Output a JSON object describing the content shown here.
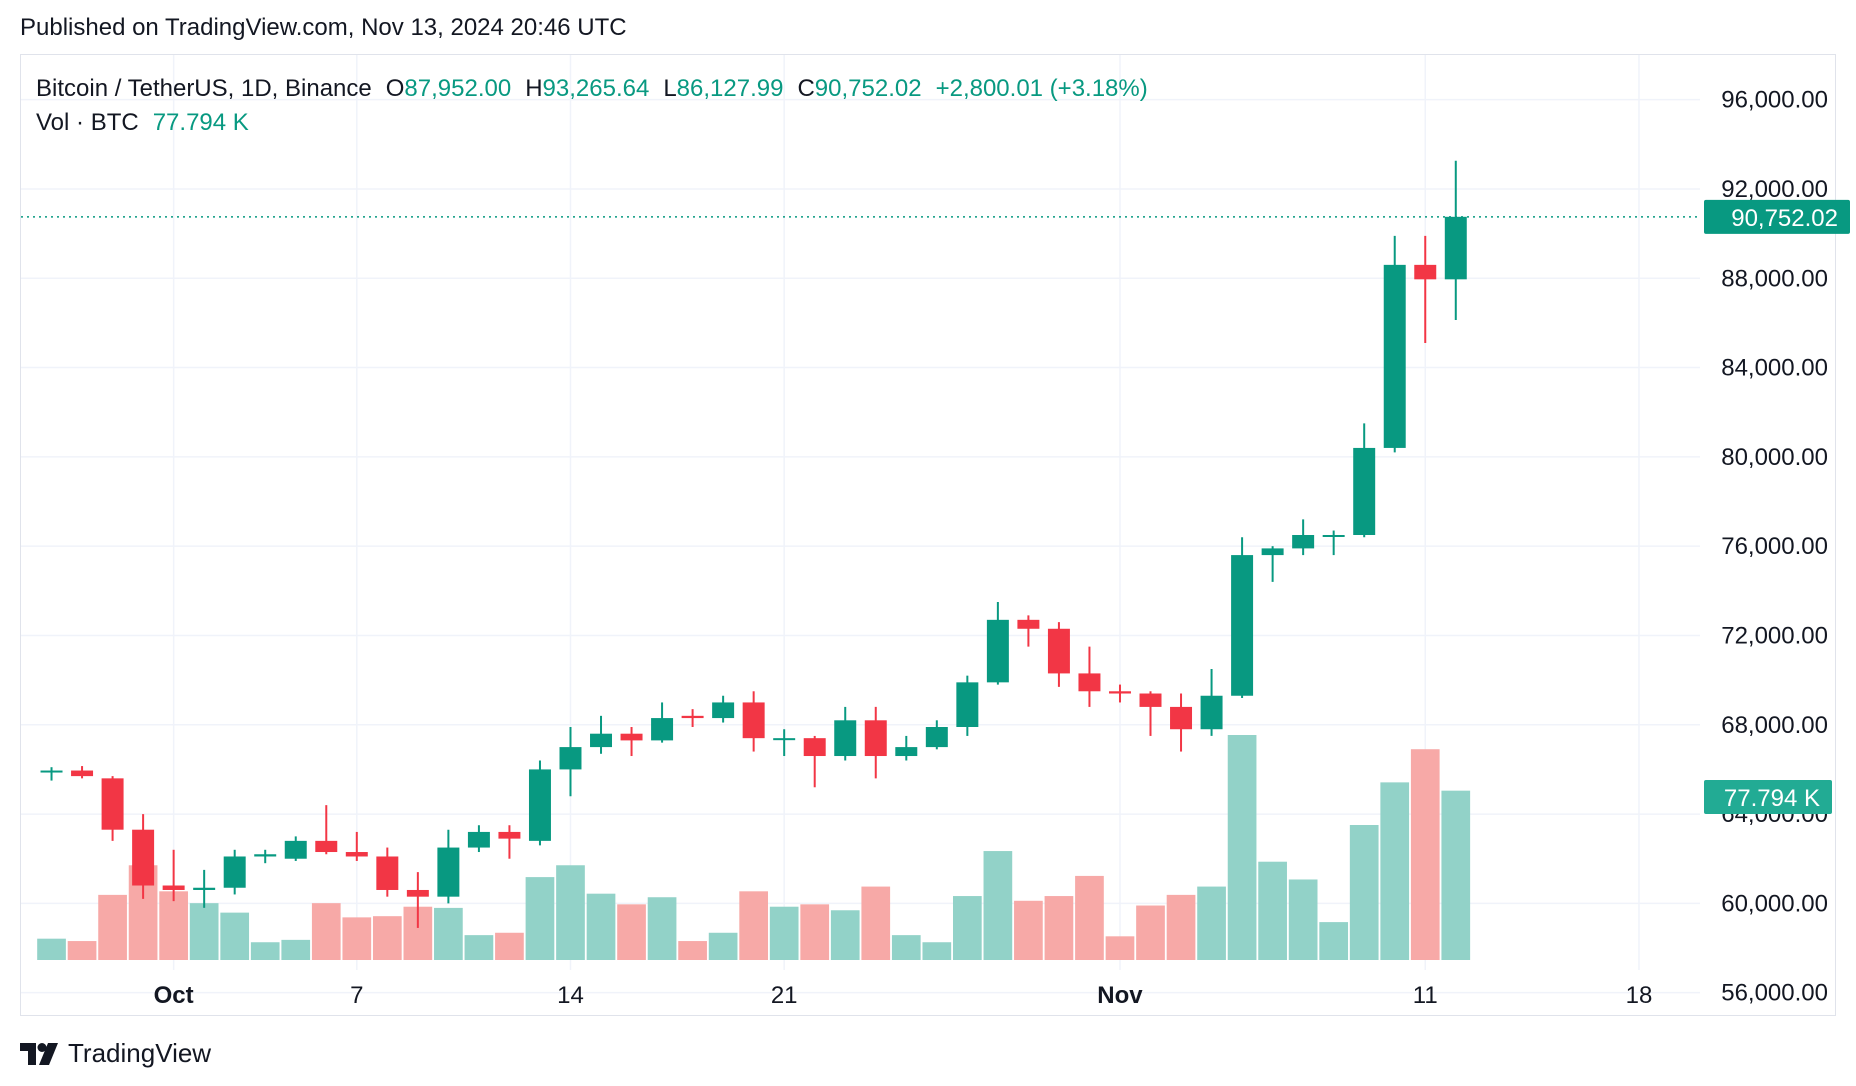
{
  "header": {
    "published": "Published on TradingView.com, Nov 13, 2024 20:46 UTC"
  },
  "legend": {
    "symbol": "Bitcoin / TetherUS, 1D, Binance",
    "o_label": "O",
    "o_value": "87,952.00",
    "h_label": "H",
    "h_value": "93,265.64",
    "l_label": "L",
    "l_value": "86,127.99",
    "c_label": "C",
    "c_value": "90,752.02",
    "change": "+2,800.01 (+3.18%)",
    "vol_label": "Vol · BTC",
    "vol_value": "77.794 K"
  },
  "footer": {
    "brand": "TradingView"
  },
  "colors": {
    "up": "#089981",
    "down": "#f23645",
    "up_volume": "#92d2c8",
    "down_volume": "#f7a9a7",
    "grid": "#f0f3fa",
    "axis_text": "#131722"
  },
  "chart_data": {
    "type": "candlestick",
    "title": "Bitcoin / TetherUS, 1D, Binance",
    "ylim": [
      55000,
      98000
    ],
    "y_ticks": [
      "96,000.00",
      "92,000.00",
      "88,000.00",
      "84,000.00",
      "80,000.00",
      "76,000.00",
      "72,000.00",
      "68,000.00",
      "64,000.00",
      "60,000.00",
      "56,000.00"
    ],
    "y_tick_values": [
      96000,
      92000,
      88000,
      84000,
      80000,
      76000,
      72000,
      68000,
      64000,
      60000,
      56000
    ],
    "x_ticks": [
      {
        "label": "Oct",
        "date": "2024-10-01"
      },
      {
        "label": "7",
        "date": "2024-10-07"
      },
      {
        "label": "14",
        "date": "2024-10-14"
      },
      {
        "label": "21",
        "date": "2024-10-21"
      },
      {
        "label": "Nov",
        "date": "2024-11-01"
      },
      {
        "label": "11",
        "date": "2024-11-11"
      },
      {
        "label": "18",
        "date": "2024-11-18"
      }
    ],
    "x_range": [
      "2024-09-26",
      "2024-11-20"
    ],
    "last_price_label": "90,752.02",
    "last_price": 90752.02,
    "volume_label": "77.794 K",
    "candles": [
      {
        "date": "2024-09-27",
        "open": 65900,
        "high": 66100,
        "low": 65500,
        "close": 65950,
        "volume": 18
      },
      {
        "date": "2024-09-28",
        "open": 65950,
        "high": 66150,
        "low": 65600,
        "close": 65700,
        "volume": 16
      },
      {
        "date": "2024-09-29",
        "open": 65600,
        "high": 65700,
        "low": 62800,
        "close": 63300,
        "volume": 55
      },
      {
        "date": "2024-09-30",
        "open": 63300,
        "high": 64000,
        "low": 60200,
        "close": 60800,
        "volume": 80
      },
      {
        "date": "2024-10-01",
        "open": 60800,
        "high": 62400,
        "low": 60100,
        "close": 60600,
        "volume": 58
      },
      {
        "date": "2024-10-02",
        "open": 60600,
        "high": 61500,
        "low": 59800,
        "close": 60700,
        "volume": 48
      },
      {
        "date": "2024-10-03",
        "open": 60700,
        "high": 62400,
        "low": 60400,
        "close": 62100,
        "volume": 40
      },
      {
        "date": "2024-10-04",
        "open": 62100,
        "high": 62400,
        "low": 61800,
        "close": 62200,
        "volume": 15
      },
      {
        "date": "2024-10-05",
        "open": 62000,
        "high": 63000,
        "low": 61900,
        "close": 62800,
        "volume": 17
      },
      {
        "date": "2024-10-06",
        "open": 62800,
        "high": 64400,
        "low": 62200,
        "close": 62300,
        "volume": 48
      },
      {
        "date": "2024-10-07",
        "open": 62300,
        "high": 63200,
        "low": 61900,
        "close": 62100,
        "volume": 36
      },
      {
        "date": "2024-10-08",
        "open": 62100,
        "high": 62500,
        "low": 60300,
        "close": 60600,
        "volume": 37
      },
      {
        "date": "2024-10-09",
        "open": 60600,
        "high": 61400,
        "low": 58900,
        "close": 60300,
        "volume": 45
      },
      {
        "date": "2024-10-10",
        "open": 60300,
        "high": 63300,
        "low": 60000,
        "close": 62500,
        "volume": 44
      },
      {
        "date": "2024-10-11",
        "open": 62500,
        "high": 63500,
        "low": 62300,
        "close": 63200,
        "volume": 21
      },
      {
        "date": "2024-10-12",
        "open": 63200,
        "high": 63500,
        "low": 62000,
        "close": 62900,
        "volume": 23
      },
      {
        "date": "2024-10-13",
        "open": 62800,
        "high": 66400,
        "low": 62600,
        "close": 66000,
        "volume": 70
      },
      {
        "date": "2024-10-14",
        "open": 66000,
        "high": 67900,
        "low": 64800,
        "close": 67000,
        "volume": 80
      },
      {
        "date": "2024-10-15",
        "open": 67000,
        "high": 68400,
        "low": 66700,
        "close": 67600,
        "volume": 56
      },
      {
        "date": "2024-10-16",
        "open": 67600,
        "high": 67900,
        "low": 66600,
        "close": 67300,
        "volume": 47
      },
      {
        "date": "2024-10-17",
        "open": 67300,
        "high": 69000,
        "low": 67200,
        "close": 68300,
        "volume": 53
      },
      {
        "date": "2024-10-18",
        "open": 68400,
        "high": 68700,
        "low": 67900,
        "close": 68300,
        "volume": 16
      },
      {
        "date": "2024-10-19",
        "open": 68300,
        "high": 69300,
        "low": 68100,
        "close": 69000,
        "volume": 23
      },
      {
        "date": "2024-10-20",
        "open": 69000,
        "high": 69500,
        "low": 66800,
        "close": 67400,
        "volume": 58
      },
      {
        "date": "2024-10-21",
        "open": 67400,
        "high": 67800,
        "low": 66600,
        "close": 67400,
        "volume": 45
      },
      {
        "date": "2024-10-22",
        "open": 67400,
        "high": 67500,
        "low": 65200,
        "close": 66600,
        "volume": 47
      },
      {
        "date": "2024-10-23",
        "open": 66600,
        "high": 68800,
        "low": 66400,
        "close": 68200,
        "volume": 42
      },
      {
        "date": "2024-10-24",
        "open": 68200,
        "high": 68800,
        "low": 65600,
        "close": 66600,
        "volume": 62
      },
      {
        "date": "2024-10-25",
        "open": 66600,
        "high": 67500,
        "low": 66400,
        "close": 67000,
        "volume": 21
      },
      {
        "date": "2024-10-26",
        "open": 67000,
        "high": 68200,
        "low": 66900,
        "close": 67900,
        "volume": 15
      },
      {
        "date": "2024-10-27",
        "open": 67900,
        "high": 70200,
        "low": 67500,
        "close": 69900,
        "volume": 54
      },
      {
        "date": "2024-10-28",
        "open": 69900,
        "high": 73500,
        "low": 69800,
        "close": 72700,
        "volume": 92
      },
      {
        "date": "2024-10-29",
        "open": 72700,
        "high": 72900,
        "low": 71500,
        "close": 72300,
        "volume": 50
      },
      {
        "date": "2024-10-30",
        "open": 72300,
        "high": 72600,
        "low": 69700,
        "close": 70300,
        "volume": 54
      },
      {
        "date": "2024-10-31",
        "open": 70300,
        "high": 71500,
        "low": 68800,
        "close": 69500,
        "volume": 71
      },
      {
        "date": "2024-11-01",
        "open": 69500,
        "high": 69800,
        "low": 69000,
        "close": 69400,
        "volume": 20
      },
      {
        "date": "2024-11-02",
        "open": 69400,
        "high": 69500,
        "low": 67500,
        "close": 68800,
        "volume": 46
      },
      {
        "date": "2024-11-03",
        "open": 68800,
        "high": 69400,
        "low": 66800,
        "close": 67800,
        "volume": 55
      },
      {
        "date": "2024-11-04",
        "open": 67800,
        "high": 70500,
        "low": 67500,
        "close": 69300,
        "volume": 62
      },
      {
        "date": "2024-11-05",
        "open": 69300,
        "high": 76400,
        "low": 69200,
        "close": 75600,
        "volume": 190
      },
      {
        "date": "2024-11-06",
        "open": 75600,
        "high": 76000,
        "low": 74400,
        "close": 75900,
        "volume": 83
      },
      {
        "date": "2024-11-07",
        "open": 75900,
        "high": 77200,
        "low": 75600,
        "close": 76500,
        "volume": 68
      },
      {
        "date": "2024-11-08",
        "open": 76500,
        "high": 76700,
        "low": 75600,
        "close": 76500,
        "volume": 32
      },
      {
        "date": "2024-11-09",
        "open": 76500,
        "high": 81500,
        "low": 76400,
        "close": 80400,
        "volume": 114
      },
      {
        "date": "2024-11-10",
        "open": 80400,
        "high": 89900,
        "low": 80200,
        "close": 88600,
        "volume": 150
      },
      {
        "date": "2024-11-11",
        "open": 88600,
        "high": 89900,
        "low": 85100,
        "close": 87952,
        "volume": 178
      },
      {
        "date": "2024-11-12",
        "open": 87952,
        "high": 93265.64,
        "low": 86127.99,
        "close": 90752.02,
        "volume": 143
      }
    ]
  }
}
